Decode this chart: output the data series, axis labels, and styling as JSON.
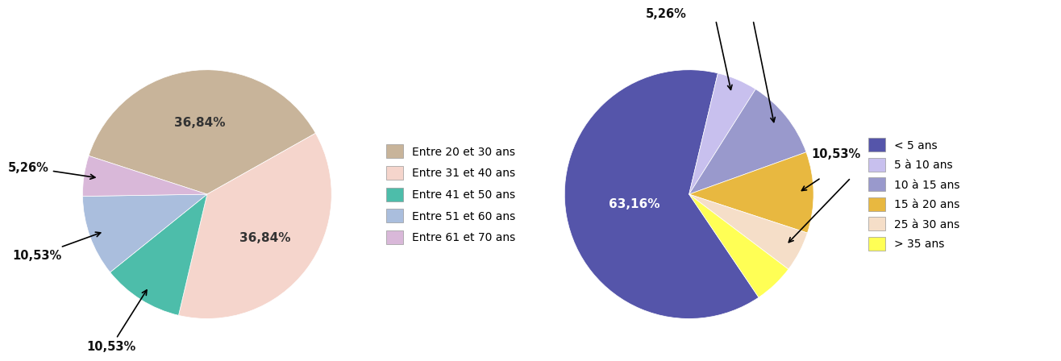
{
  "chart1": {
    "labels": [
      "Entre 20 et 30 ans",
      "Entre 31 et 40 ans",
      "Entre 41 et 50 ans",
      "Entre 51 et 60 ans",
      "Entre 61 et 70 ans"
    ],
    "values": [
      36.84,
      36.84,
      10.53,
      10.53,
      5.26
    ],
    "colors": [
      "#C8B49A",
      "#F5D5CC",
      "#4DBDAA",
      "#AABEDD",
      "#D9B8D9"
    ],
    "startangle": 162,
    "counterclock": false
  },
  "chart2": {
    "labels": [
      "< 5 ans",
      "5 à 10 ans",
      "10 à 15 ans",
      "15 à 20 ans",
      "25 à 30 ans",
      "> 35 ans"
    ],
    "values": [
      63.16,
      5.26,
      10.53,
      10.53,
      5.26,
      5.26
    ],
    "colors": [
      "#5555AA",
      "#C8C0EE",
      "#9999CC",
      "#E8B840",
      "#F5DEC8",
      "#FFFF55"
    ],
    "startangle": -56,
    "counterclock": false
  },
  "background_color": "#FFFFFF",
  "fontsize": 10,
  "arrow_style": "->",
  "arrow_color": "black",
  "arrow_lw": 1.2
}
